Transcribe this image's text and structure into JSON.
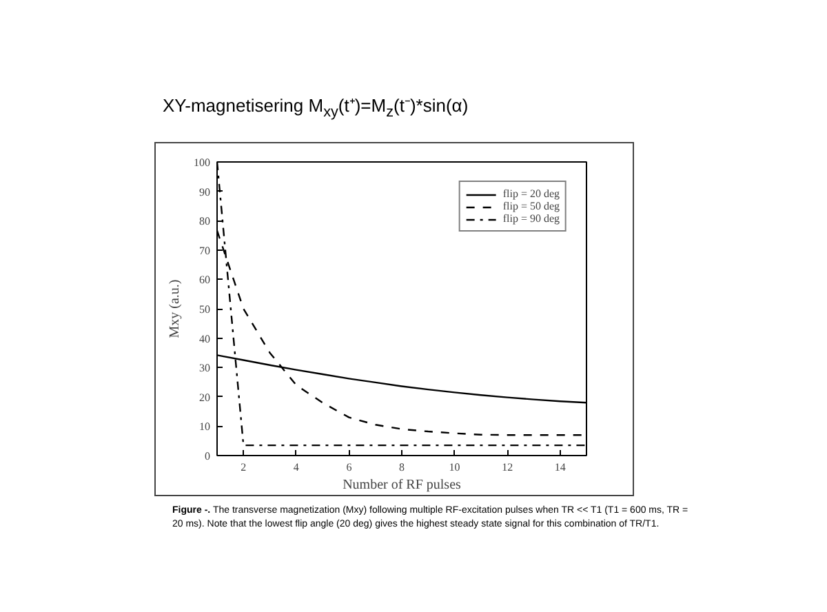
{
  "chart_data": {
    "type": "line",
    "title": "XY-magnetisering     M$_{xy}$(t⁺)=M$_{z}$(t⁻)*sin(α)",
    "xlabel": "Number of RF pulses",
    "ylabel": "Mxy (a.u.)",
    "x": [
      1,
      2,
      3,
      4,
      5,
      6,
      7,
      8,
      9,
      10,
      11,
      12,
      13,
      14,
      15
    ],
    "series": [
      {
        "name": "flip = 20 deg",
        "color": "#000000",
        "line_style": "solid",
        "values": [
          34.2,
          32.5,
          30.8,
          29.2,
          27.7,
          26.2,
          24.9,
          23.6,
          22.5,
          21.5,
          20.6,
          19.8,
          19.1,
          18.5,
          18.0
        ]
      },
      {
        "name": "flip = 50 deg",
        "color": "#000000",
        "line_style": "dashed",
        "values": [
          76.6,
          50,
          35,
          24,
          18,
          13,
          10.5,
          9,
          8.2,
          7.6,
          7.1,
          7.0,
          7.0,
          7.0,
          7.0
        ]
      },
      {
        "name": "flip = 90 deg",
        "color": "#000000",
        "line_style": "dashdot",
        "values": [
          100,
          3.5,
          3.5,
          3.5,
          3.5,
          3.5,
          3.5,
          3.5,
          3.5,
          3.5,
          3.5,
          3.5,
          3.5,
          3.5,
          3.5
        ]
      }
    ],
    "xlim": [
      1,
      15
    ],
    "xticks": [
      2,
      4,
      6,
      8,
      10,
      12,
      14
    ],
    "ylim": [
      0,
      100
    ],
    "yticks": [
      0,
      10,
      20,
      30,
      40,
      50,
      60,
      70,
      80,
      90,
      100
    ],
    "grid": false,
    "legend": "top right",
    "marker": "none",
    "annotations": [
      "Figure -. The transverse magnetization (Mxy) following multiple RF-excitation pulses when TR << T1 (T1 = 600 ms, TR = 20 ms). Note that the lowest flip angle (20 deg) gives the highest steady state signal for this combination of TR/T1."
    ]
  }
}
